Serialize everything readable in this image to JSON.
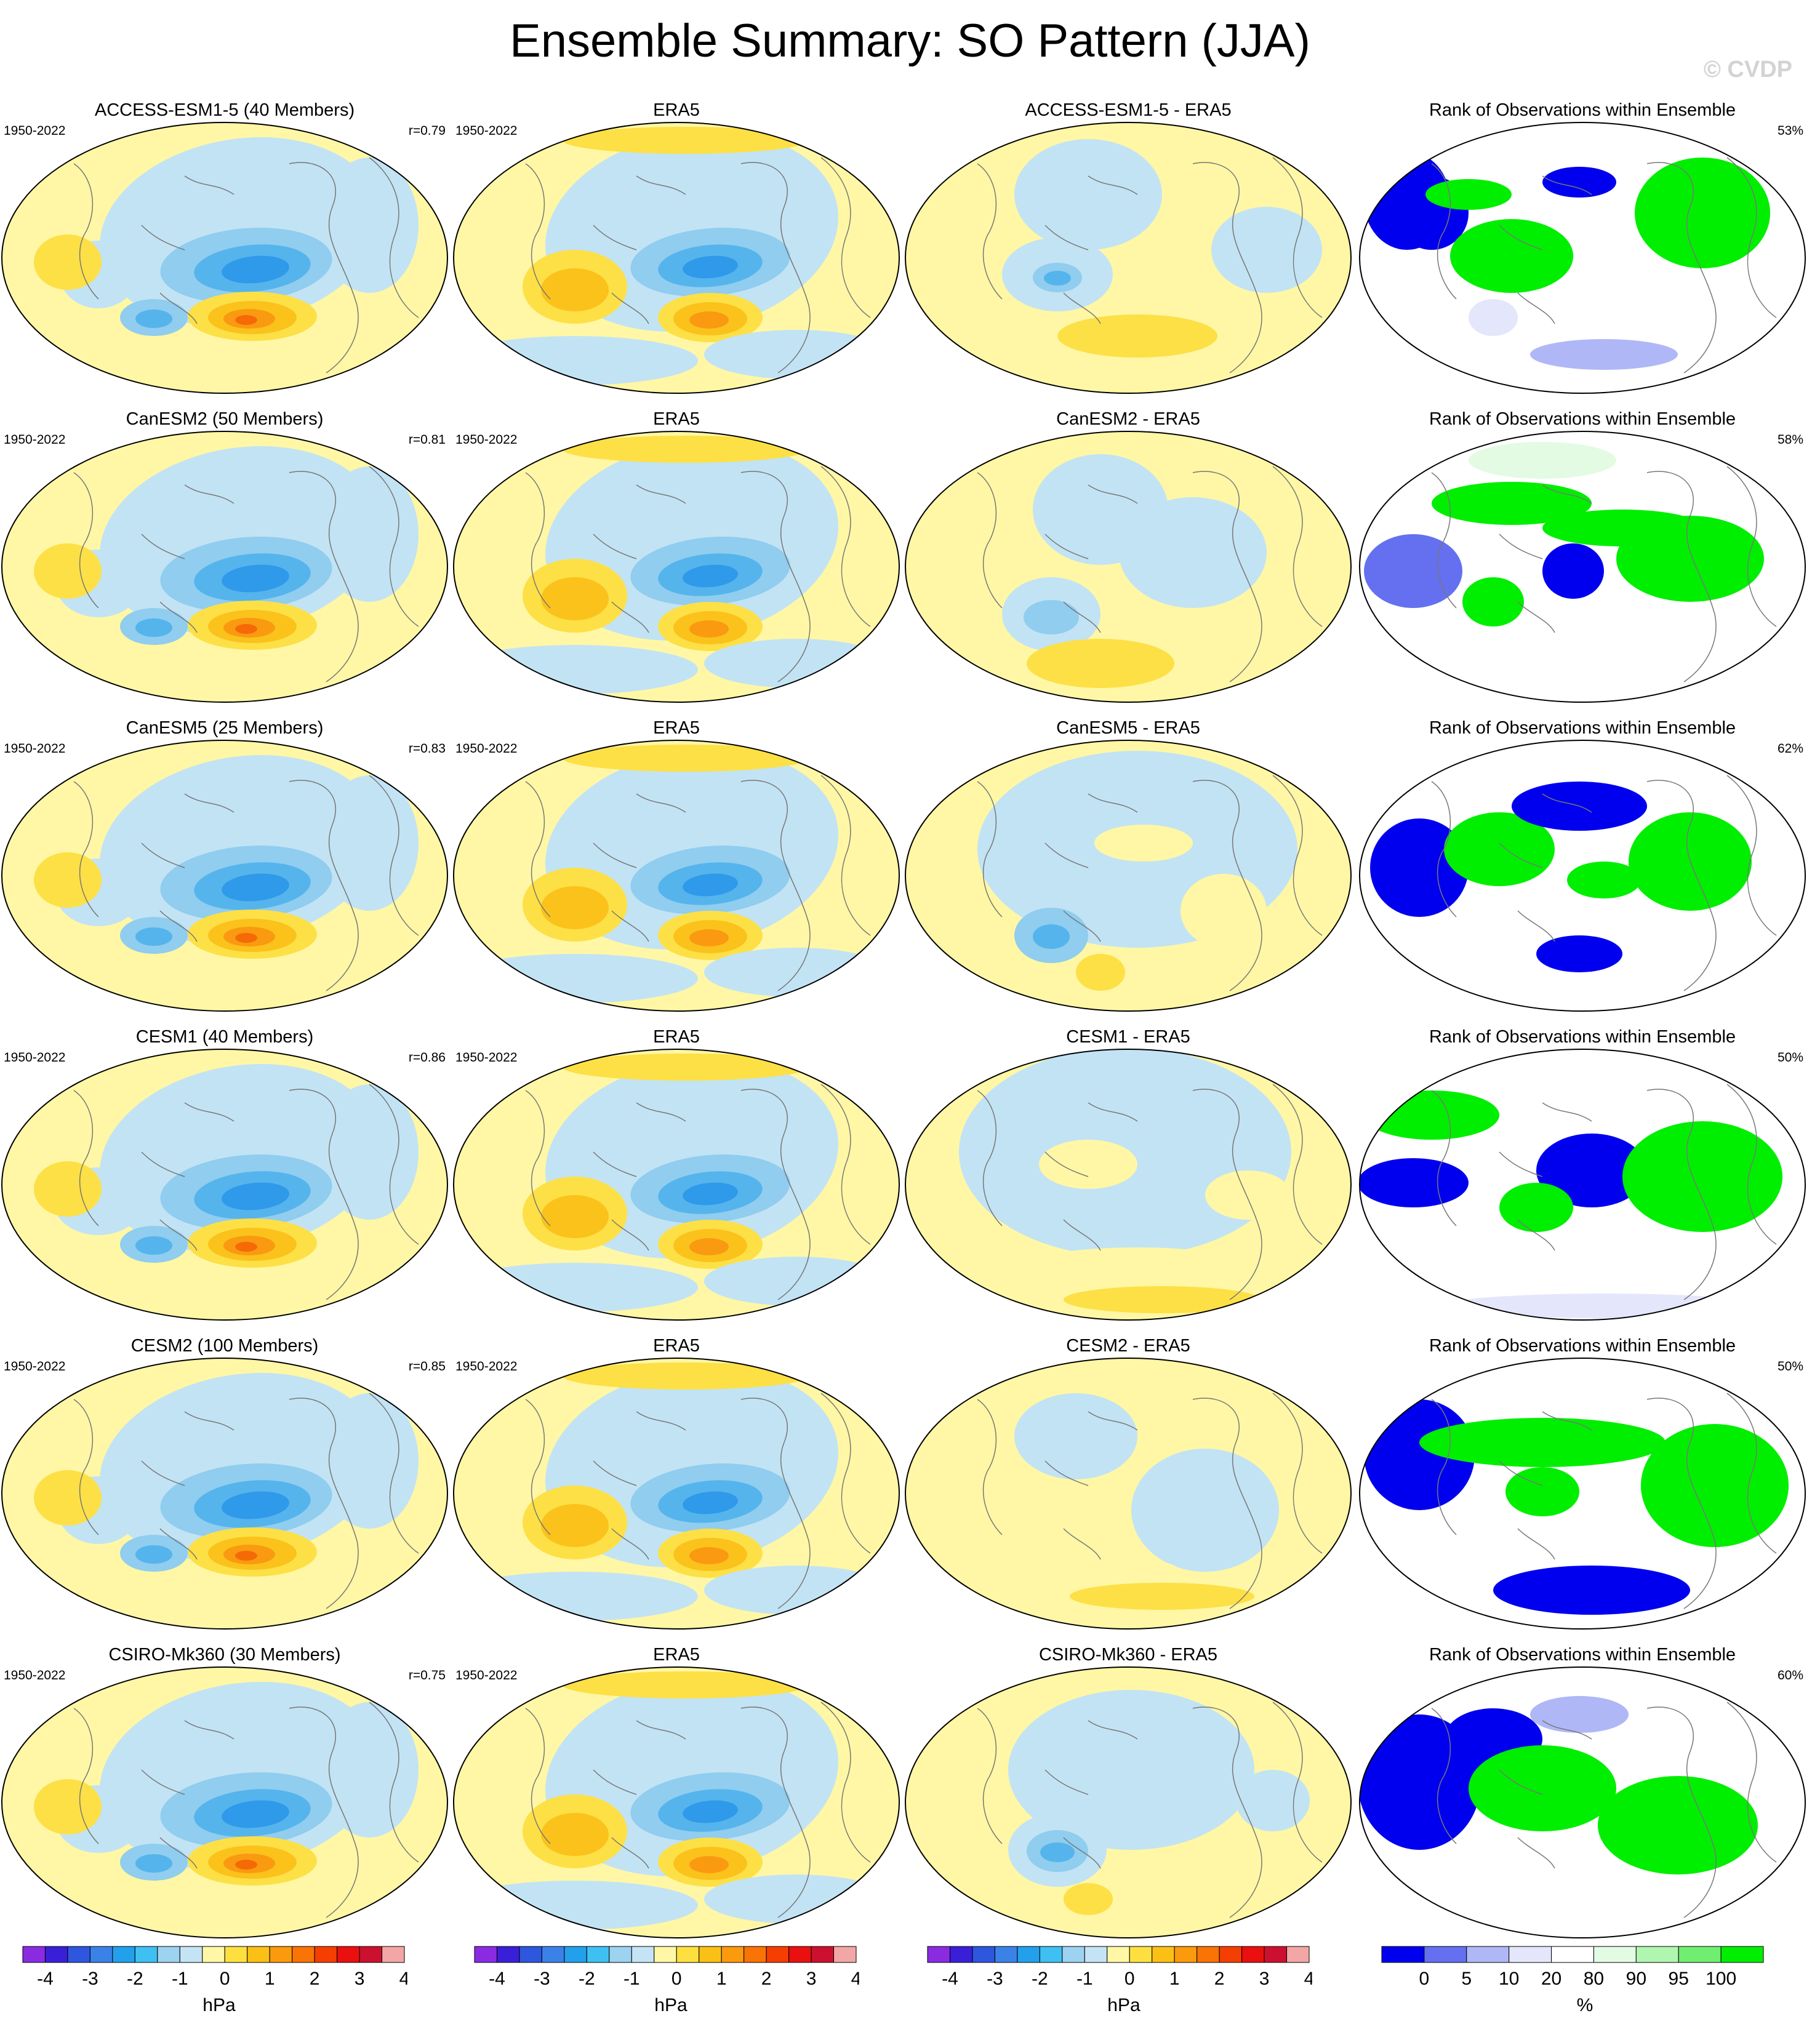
{
  "title": "Ensemble Summary: SO Pattern (JJA)",
  "copyright": "© CVDP",
  "years": "1950-2022",
  "obs_title": "ERA5",
  "rank_title": "Rank of Observations within Ensemble",
  "rows": [
    {
      "model_title": "ACCESS-ESM1-5 (40 Members)",
      "r": "r=0.79",
      "diff_title": "ACCESS-ESM1-5 - ERA5",
      "rank_pct": "53%"
    },
    {
      "model_title": "CanESM2 (50 Members)",
      "r": "r=0.81",
      "diff_title": "CanESM2 - ERA5",
      "rank_pct": "58%"
    },
    {
      "model_title": "CanESM5 (25 Members)",
      "r": "r=0.83",
      "diff_title": "CanESM5 - ERA5",
      "rank_pct": "62%"
    },
    {
      "model_title": "CESM1 (40 Members)",
      "r": "r=0.86",
      "diff_title": "CESM1 - ERA5",
      "rank_pct": "50%"
    },
    {
      "model_title": "CESM2 (100 Members)",
      "r": "r=0.85",
      "diff_title": "CESM2 - ERA5",
      "rank_pct": "50%"
    },
    {
      "model_title": "CSIRO-Mk360 (30 Members)",
      "r": "r=0.75",
      "diff_title": "CSIRO-Mk360 - ERA5",
      "rank_pct": "60%"
    }
  ],
  "colorbar_hpa": {
    "unit": "hPa",
    "labels": [
      "-4",
      "-3",
      "-2",
      "-1",
      "0",
      "1",
      "2",
      "3",
      "4"
    ],
    "colors": [
      "#8a2be2",
      "#3a1fd8",
      "#2e56df",
      "#3b82e8",
      "#22a0ec",
      "#3fc0f2",
      "#9dd2f0",
      "#c4e4f5",
      "#fff7a5",
      "#fde040",
      "#fbc015",
      "#fb9a0c",
      "#f97305",
      "#f43e02",
      "#ea1010",
      "#cc1030",
      "#f2a6a6"
    ]
  },
  "colorbar_rank": {
    "unit": "%",
    "labels": [
      "0",
      "5",
      "10",
      "20",
      "80",
      "90",
      "95",
      "100"
    ],
    "colors": [
      "#0000ee",
      "#6470f0",
      "#b0b7f6",
      "#e4e6fb",
      "#ffffff",
      "#e3fbe3",
      "#b0f5b0",
      "#70ee70",
      "#00ee00"
    ]
  }
}
